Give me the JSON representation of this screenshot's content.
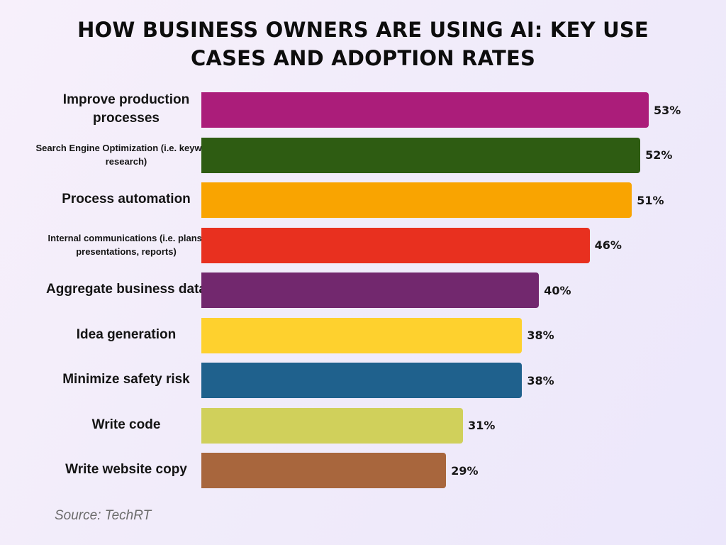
{
  "chart_data": {
    "type": "bar",
    "orientation": "horizontal",
    "title": "HOW BUSINESS OWNERS ARE USING AI: KEY USE CASES AND ADOPTION RATES",
    "xlabel": "",
    "ylabel": "",
    "xlim": [
      0,
      53
    ],
    "grid": false,
    "legend": "none",
    "unit": "%",
    "categories": [
      "Improve production processes",
      "Search Engine Optimization (i.e. keyword research)",
      "Process automation",
      "Internal communications (i.e. plans, presentations, reports)",
      "Aggregate business data",
      "Idea generation",
      "Minimize safety risk",
      "Write code",
      "Write website copy"
    ],
    "values": [
      53,
      52,
      51,
      46,
      40,
      38,
      38,
      31,
      29
    ],
    "value_labels": [
      "53%",
      "52%",
      "51%",
      "46%",
      "40%",
      "38%",
      "38%",
      "31%",
      "29%"
    ],
    "colors": [
      "#ab1d7a",
      "#2e5c12",
      "#f9a401",
      "#e8301f",
      "#72286e",
      "#fed12e",
      "#1f618d",
      "#d0d05b",
      "#a8663d"
    ],
    "small_label_indices": [
      1,
      3
    ]
  },
  "source": "Source: TechRT"
}
